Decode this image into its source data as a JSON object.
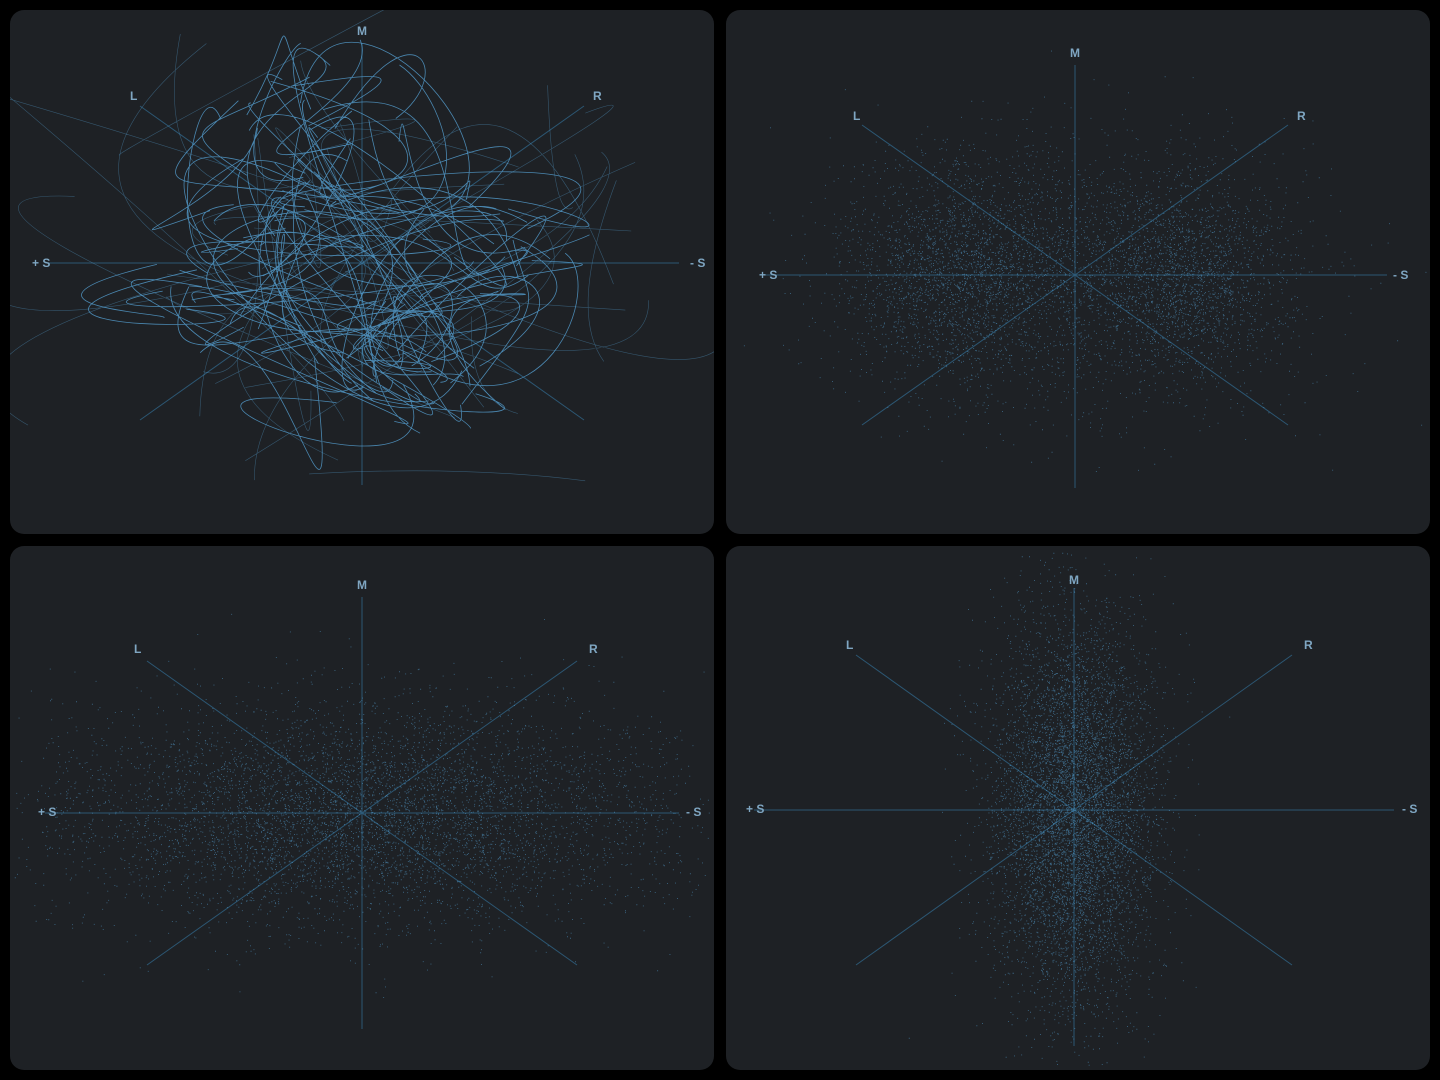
{
  "axis_labels": {
    "mid": "M",
    "left": "L",
    "right": "R",
    "plus_side": "+ S",
    "minus_side": "- S"
  },
  "colors": {
    "window_bg": "#000000",
    "panel_bg": "#1e2125",
    "axis": "#2e5d7c",
    "label": "#7fa6c2",
    "trace": "#5aa9df"
  },
  "panels": [
    {
      "name": "goniometer-top-left",
      "display_style": "line-traces"
    },
    {
      "name": "goniometer-top-right",
      "display_style": "two-lobe-cloud"
    },
    {
      "name": "goniometer-bottom-left",
      "display_style": "wide-horizontal-cloud"
    },
    {
      "name": "goniometer-bottom-right",
      "display_style": "narrow-vertical-cloud"
    }
  ]
}
